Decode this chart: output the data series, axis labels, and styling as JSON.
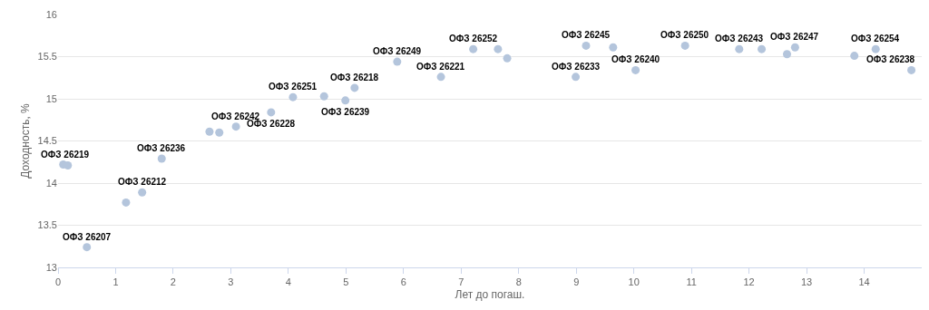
{
  "chart_data": {
    "type": "scatter",
    "xlabel": "Лет до погаш.",
    "ylabel": "Доходность, %",
    "x": [
      0.09,
      0.17,
      0.5,
      1.18,
      1.46,
      1.8,
      2.63,
      2.8,
      3.09,
      3.7,
      4.08,
      4.62,
      5.15,
      4.99,
      5.89,
      6.65,
      7.21,
      7.64,
      7.8,
      8.99,
      9.17,
      9.64,
      10.03,
      10.89,
      11.83,
      12.22,
      12.66,
      12.8,
      13.83,
      14.2,
      14.82
    ],
    "series": [
      {
        "color": "#b4c5dc",
        "values": [
          14.22,
          14.21,
          13.24,
          13.77,
          13.89,
          14.29,
          14.61,
          14.6,
          14.67,
          14.84,
          15.02,
          15.03,
          15.13,
          14.98,
          15.44,
          15.26,
          15.59,
          15.59,
          15.48,
          15.26,
          15.63,
          15.61,
          15.34,
          15.63,
          15.59,
          15.59,
          15.53,
          15.61,
          15.51,
          15.59,
          15.34
        ]
      }
    ],
    "marker": "circle",
    "annotations": [
      {
        "text": "ОФЗ 26219",
        "x": 0.13,
        "y": 14.22
      },
      {
        "text": "ОФЗ 26207",
        "x": 0.5,
        "y": 13.24
      },
      {
        "text": "ОФЗ 26212",
        "x": 1.46,
        "y": 13.89
      },
      {
        "text": "ОФЗ 26236",
        "x": 1.8,
        "y": 14.29
      },
      {
        "text": "ОФЗ 26242",
        "x": 3.09,
        "y": 14.67
      },
      {
        "text": "ОФЗ 26228",
        "x": 3.7,
        "y": 14.84
      },
      {
        "text": "ОФЗ 26251",
        "x": 4.08,
        "y": 15.02
      },
      {
        "text": "ОФЗ 26218",
        "x": 5.15,
        "y": 15.13
      },
      {
        "text": "ОФЗ 26239",
        "x": 4.99,
        "y": 14.98
      },
      {
        "text": "ОФЗ 26249",
        "x": 5.89,
        "y": 15.44
      },
      {
        "text": "ОФЗ 26221",
        "x": 6.65,
        "y": 15.26
      },
      {
        "text": "ОФЗ 26252",
        "x": 7.21,
        "y": 15.59
      },
      {
        "text": "ОФЗ 26233",
        "x": 8.99,
        "y": 15.26
      },
      {
        "text": "ОФЗ 26245",
        "x": 9.17,
        "y": 15.63
      },
      {
        "text": "ОФЗ 26240",
        "x": 10.03,
        "y": 15.34
      },
      {
        "text": "ОФЗ 26250",
        "x": 10.89,
        "y": 15.63
      },
      {
        "text": "ОФЗ 26243",
        "x": 11.83,
        "y": 15.59
      },
      {
        "text": "ОФЗ 26247",
        "x": 12.8,
        "y": 15.61
      },
      {
        "text": "ОФЗ 26254",
        "x": 14.2,
        "y": 15.59
      },
      {
        "text": "ОФЗ 26238",
        "x": 14.82,
        "y": 15.34
      }
    ],
    "xlim": [
      0,
      15
    ],
    "xticks": [
      0,
      1,
      2,
      3,
      4,
      5,
      6,
      7,
      8,
      9,
      10,
      11,
      12,
      13,
      14
    ],
    "ylim": [
      13,
      16
    ],
    "yticks": [
      13,
      13.5,
      14,
      14.5,
      15,
      15.5,
      16
    ],
    "grid": "y"
  }
}
